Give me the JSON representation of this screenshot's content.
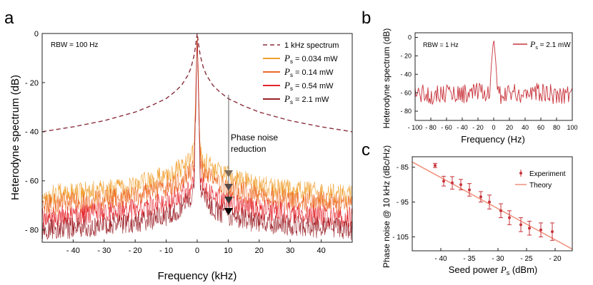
{
  "chart_data": [
    {
      "panel": "a",
      "type": "line",
      "xlabel": "Frequency (kHz)",
      "ylabel": "Heterodyne spectrum (dB)",
      "xlim": [
        -50,
        50
      ],
      "ylim": [
        -85,
        0
      ],
      "xticks": [
        -40,
        -30,
        -20,
        -10,
        0,
        10,
        20,
        30,
        40
      ],
      "xtick_labels": [
        "- 40",
        "- 30",
        "- 20",
        "- 10",
        "0",
        "10",
        "20",
        "30",
        "40"
      ],
      "yticks": [
        0,
        -20,
        -40,
        -60,
        -80
      ],
      "ytick_labels": [
        "0",
        "- 20",
        "- 40",
        "- 60",
        "- 80"
      ],
      "grid": false,
      "legend_position": "top-right",
      "annotations": {
        "rbw": "RBW = 100 Hz",
        "phase_noise_line1": "Phase noise",
        "phase_noise_line2": "reduction"
      },
      "series": [
        {
          "name": "1 kHz spectrum",
          "style": "dashed",
          "color": "#8b2f3c",
          "x": [
            -50,
            -40,
            -30,
            -20,
            -15,
            -10,
            -7,
            -5,
            -3,
            -2,
            -1,
            -0.5,
            0,
            0.5,
            1,
            2,
            3,
            5,
            7,
            10,
            15,
            20,
            30,
            40,
            50
          ],
          "values": [
            -40,
            -38,
            -35.5,
            -32,
            -29.5,
            -26.5,
            -23.5,
            -21,
            -17,
            -14,
            -9,
            -5,
            0,
            -5,
            -9,
            -14,
            -17,
            -21,
            -23.5,
            -26.5,
            -29.5,
            -32,
            -35.5,
            -38,
            -40
          ]
        },
        {
          "name": "Ps = 0.034 mW",
          "symbol": "P",
          "subscript": "s",
          "value_text": "= 0.034 mW",
          "color": "#f0a030",
          "x": [
            -50,
            -40,
            -30,
            -20,
            -10,
            -5,
            -2,
            -1,
            0,
            1,
            2,
            5,
            10,
            20,
            30,
            40,
            50
          ],
          "values": [
            -66,
            -65,
            -64,
            -62,
            -58,
            -55,
            -52,
            -48,
            0,
            -48,
            -52,
            -55,
            -58,
            -62,
            -64,
            -65,
            -66
          ]
        },
        {
          "name": "Ps = 0.14 mW",
          "symbol": "P",
          "subscript": "s",
          "value_text": "= 0.14 mW",
          "color": "#ee6a25",
          "x": [
            -50,
            -40,
            -30,
            -20,
            -10,
            -5,
            -2,
            -1,
            0,
            1,
            2,
            5,
            10,
            20,
            30,
            40,
            50
          ],
          "values": [
            -70,
            -69,
            -68,
            -66,
            -63,
            -60,
            -57,
            -53,
            0,
            -53,
            -57,
            -60,
            -63,
            -66,
            -68,
            -69,
            -70
          ]
        },
        {
          "name": "Ps = 0.54 mW",
          "symbol": "P",
          "subscript": "s",
          "value_text": "= 0.54 mW",
          "color": "#e5232b",
          "x": [
            -50,
            -40,
            -30,
            -20,
            -10,
            -5,
            -2,
            -1,
            0,
            1,
            2,
            5,
            10,
            20,
            30,
            40,
            50
          ],
          "values": [
            -75,
            -74,
            -73,
            -72,
            -69,
            -66,
            -63,
            -58,
            0,
            -58,
            -63,
            -66,
            -69,
            -72,
            -73,
            -74,
            -75
          ]
        },
        {
          "name": "Ps = 2.1 mW",
          "symbol": "P",
          "subscript": "s",
          "value_text": "= 2.1 mW",
          "color": "#9a2027",
          "x": [
            -50,
            -40,
            -30,
            -20,
            -10,
            -5,
            -2,
            -1,
            0,
            1,
            2,
            5,
            10,
            20,
            30,
            40,
            50
          ],
          "values": [
            -80,
            -79,
            -78,
            -77,
            -74,
            -71,
            -67,
            -62,
            0,
            -62,
            -67,
            -71,
            -74,
            -77,
            -78,
            -79,
            -80
          ]
        }
      ]
    },
    {
      "panel": "b",
      "type": "line",
      "xlabel": "Frequency (Hz)",
      "ylabel": "Heterodyne spectrum (dB)",
      "xlim": [
        -100,
        100
      ],
      "ylim": [
        -90,
        5
      ],
      "xticks": [
        -100,
        -80,
        -60,
        -40,
        -20,
        0,
        20,
        40,
        60,
        80,
        100
      ],
      "xtick_labels": [
        "- 100",
        "- 80",
        "- 60",
        "- 40",
        "- 20",
        "0",
        "20",
        "40",
        "60",
        "80",
        "100"
      ],
      "yticks": [
        0,
        -20,
        -40,
        -60,
        -80
      ],
      "ytick_labels": [
        "0",
        "- 20",
        "- 40",
        "- 60",
        "- 80"
      ],
      "grid": false,
      "legend_position": "top-right",
      "annotations": {
        "rbw": "RBW = 1 Hz"
      },
      "series": [
        {
          "name": "Ps = 2.1 mW",
          "symbol": "P",
          "subscript": "s",
          "value_text": "= 2.1 mW",
          "color": "#c8333b",
          "x": [
            -100,
            -80,
            -60,
            -40,
            -20,
            -10,
            -5,
            -3,
            0,
            3,
            5,
            10,
            20,
            40,
            60,
            80,
            100
          ],
          "values": [
            -60,
            -62,
            -60,
            -61,
            -60,
            -62,
            -60,
            -30,
            0,
            -30,
            -60,
            -62,
            -60,
            -61,
            -60,
            -62,
            -60
          ]
        }
      ]
    },
    {
      "panel": "c",
      "type": "scatter",
      "xlabel": "Seed power",
      "xlabel_symbol": "P",
      "xlabel_subscript": "s",
      "xlabel_unit": "(dBm)",
      "ylabel": "Phase noise @ 10 kHz (dBc/Hz)",
      "xlim": [
        -45,
        -17
      ],
      "ylim": [
        -109,
        -82
      ],
      "xticks": [
        -40,
        -35,
        -30,
        -25,
        -20
      ],
      "xtick_labels": [
        "- 40",
        "- 35",
        "- 30",
        "- 25",
        "- 20"
      ],
      "yticks": [
        -85,
        -95,
        -105
      ],
      "ytick_labels": [
        "- 85",
        "- 95",
        "- 105"
      ],
      "grid": false,
      "legend_position": "top-right",
      "series": [
        {
          "name": "Experiment",
          "color": "#c8333b",
          "marker": "point-with-error-bars",
          "x": [
            -41,
            -39.5,
            -38,
            -36.5,
            -35,
            -33,
            -31.5,
            -29.5,
            -28,
            -26,
            -24.5,
            -22.5,
            -20.5
          ],
          "values": [
            -84.5,
            -89,
            -89.5,
            -90,
            -91.5,
            -93.5,
            -95,
            -97.5,
            -99.5,
            -101.5,
            -102.5,
            -103,
            -103.5
          ],
          "errors": [
            0.6,
            1.4,
            1.8,
            1.5,
            1.8,
            1.5,
            2,
            2,
            2,
            2,
            2,
            2,
            2.5
          ]
        },
        {
          "name": "Theory",
          "color": "#f0907a",
          "style": "solid",
          "x": [
            -45,
            -17
          ],
          "values": [
            -83.5,
            -108.5
          ]
        }
      ]
    }
  ],
  "panel_labels": {
    "a": "a",
    "b": "b",
    "c": "c"
  }
}
